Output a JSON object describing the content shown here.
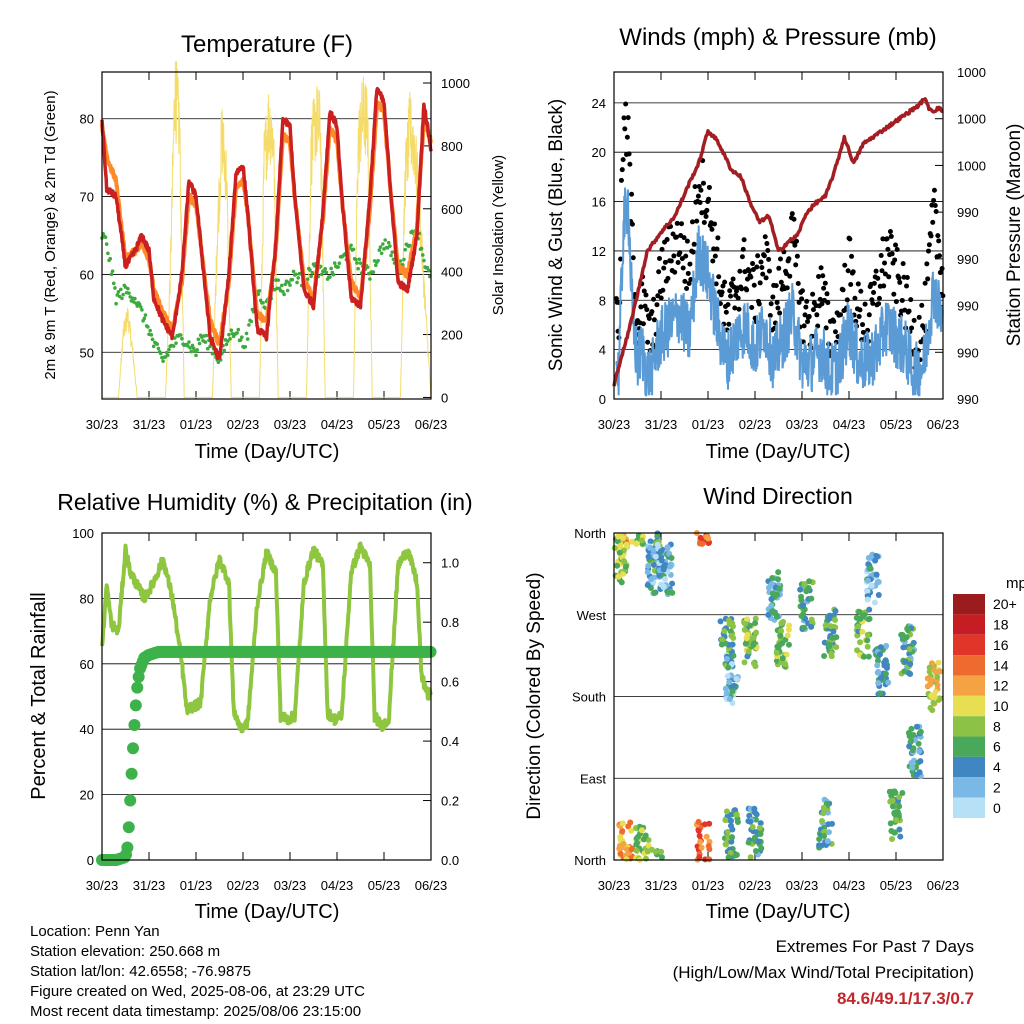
{
  "colors": {
    "temp_red": "#cc1f1f",
    "temp_orange": "#ff8a2a",
    "dewpoint_green": "#3daa3d",
    "solar_yellow": "#f5dc6a",
    "gust_black": "#000000",
    "wind_blue": "#5b9bd5",
    "pressure_maroon": "#a31e22",
    "rh_lightgreen": "#8ec63f",
    "precip_green": "#3eb24a",
    "extremes_red": "#c0282d"
  },
  "x_ticks": [
    "30/23",
    "31/23",
    "01/23",
    "02/23",
    "03/23",
    "04/23",
    "05/23",
    "06/23"
  ],
  "chart_data": [
    {
      "type": "line",
      "title": "Temperature (F)",
      "xlabel": "Time (Day/UTC)",
      "ylabel": "2m & 9m T (Red, Orange) & 2m Td (Green)",
      "y2label": "Solar Insolation (Yellow)",
      "ylim": [
        44,
        86
      ],
      "yticks": [
        50,
        60,
        70,
        80
      ],
      "y2lim": [
        -5,
        1035
      ],
      "y2ticks": [
        0,
        200,
        400,
        600,
        800,
        1000
      ],
      "grid": true,
      "x_units": "days since 30/23 UTC",
      "series": [
        {
          "name": "2m T",
          "color": "red",
          "x": [
            0,
            0.1,
            0.3,
            0.5,
            0.7,
            0.85,
            1.0,
            1.1,
            1.3,
            1.5,
            1.7,
            1.85,
            2.0,
            2.1,
            2.3,
            2.5,
            2.7,
            2.85,
            3.0,
            3.1,
            3.3,
            3.5,
            3.7,
            3.85,
            4.0,
            4.1,
            4.3,
            4.5,
            4.7,
            4.85,
            5.0,
            5.1,
            5.3,
            5.5,
            5.7,
            5.85,
            6.0,
            6.15,
            6.3,
            6.5,
            6.7,
            6.85,
            7.0
          ],
          "values": [
            80,
            71,
            70,
            61,
            63,
            65,
            63,
            57,
            54,
            52,
            60,
            72,
            70,
            64,
            52,
            49,
            60,
            73,
            74,
            68,
            53,
            52,
            64,
            80,
            79,
            70,
            58,
            56,
            68,
            81,
            79,
            70,
            57,
            56,
            70,
            84,
            82,
            70,
            59,
            58,
            65,
            82,
            76
          ]
        },
        {
          "name": "9m T",
          "color": "orange",
          "x": [
            0,
            0.1,
            0.3,
            0.5,
            0.7,
            0.85,
            1.0,
            1.1,
            1.3,
            1.5,
            1.7,
            1.85,
            2.0,
            2.1,
            2.3,
            2.5,
            2.7,
            2.85,
            3.0,
            3.1,
            3.3,
            3.5,
            3.7,
            3.85,
            4.0,
            4.1,
            4.3,
            4.5,
            4.7,
            4.85,
            5.0,
            5.1,
            5.3,
            5.5,
            5.7,
            5.85,
            6.0,
            6.15,
            6.3,
            6.5,
            6.7,
            6.85,
            7.0
          ],
          "values": [
            79,
            75,
            72,
            62,
            63,
            64,
            62,
            58,
            55,
            53,
            59,
            70,
            69,
            64,
            54,
            51,
            59,
            71,
            72,
            68,
            55,
            54,
            63,
            78,
            77,
            70,
            59,
            57,
            67,
            79,
            77,
            70,
            59,
            57,
            68,
            82,
            81,
            70,
            61,
            60,
            66,
            80,
            77
          ]
        },
        {
          "name": "2m Td",
          "color": "green",
          "x": [
            0,
            0.1,
            0.3,
            0.5,
            0.7,
            0.85,
            1.0,
            1.1,
            1.3,
            1.5,
            1.7,
            1.85,
            2.0,
            2.1,
            2.3,
            2.5,
            2.7,
            2.85,
            3.0,
            3.1,
            3.3,
            3.5,
            3.7,
            3.85,
            4.0,
            4.1,
            4.3,
            4.5,
            4.7,
            4.85,
            5.0,
            5.1,
            5.3,
            5.5,
            5.7,
            5.85,
            6.0,
            6.15,
            6.3,
            6.5,
            6.7,
            6.85,
            7.0
          ],
          "values": [
            65,
            64,
            57,
            58,
            57,
            55,
            53,
            51,
            49,
            51,
            52,
            51,
            50,
            52,
            51,
            49,
            52,
            53,
            51,
            52,
            58,
            56,
            59,
            58,
            59,
            60,
            59,
            61,
            60,
            60,
            61,
            62,
            63,
            61,
            60,
            62,
            64,
            63,
            60,
            64,
            66,
            62,
            59
          ]
        },
        {
          "name": "Solar Insolation",
          "color": "yellow",
          "axis": "right",
          "x": [
            0,
            0.35,
            0.45,
            0.55,
            0.65,
            0.75,
            1.0,
            1.35,
            1.45,
            1.55,
            1.65,
            1.75,
            2.0,
            2.35,
            2.45,
            2.55,
            2.65,
            2.75,
            3.0,
            3.35,
            3.45,
            3.55,
            3.65,
            3.75,
            4.0,
            4.35,
            4.45,
            4.55,
            4.65,
            4.75,
            5.0,
            5.35,
            5.45,
            5.55,
            5.65,
            5.75,
            6.0,
            6.35,
            6.45,
            6.55,
            6.65,
            6.75,
            7.0
          ],
          "values": [
            0,
            0,
            200,
            260,
            150,
            0,
            0,
            0,
            380,
            980,
            850,
            0,
            0,
            0,
            500,
            830,
            700,
            0,
            0,
            0,
            750,
            880,
            820,
            0,
            0,
            0,
            780,
            880,
            850,
            0,
            0,
            0,
            800,
            900,
            870,
            0,
            0,
            0,
            700,
            850,
            800,
            600,
            0
          ]
        }
      ]
    },
    {
      "type": "line",
      "title": "Winds (mph) & Pressure (mb)",
      "xlabel": "Time (Day/UTC)",
      "ylabel": "Sonic Wind & Gust (Blue, Black)",
      "y2label": "Station Pressure (Maroon)",
      "ylim": [
        0,
        26.5
      ],
      "yticks": [
        0,
        4,
        8,
        12,
        16,
        20,
        24
      ],
      "y2ticks": [
        "990",
        "990",
        "990",
        "990",
        "990",
        "1000",
        "1000",
        "1000"
      ],
      "grid": true,
      "x_units": "days since 30/23 UTC",
      "series": [
        {
          "name": "Gust",
          "color": "black",
          "x": [
            0,
            0.1,
            0.2,
            0.3,
            0.4,
            0.5,
            0.6,
            0.7,
            0.8,
            0.9,
            1.0,
            1.2,
            1.4,
            1.6,
            1.8,
            2.0,
            2.2,
            2.4,
            2.6,
            2.8,
            3.0,
            3.2,
            3.4,
            3.6,
            3.8,
            4.0,
            4.2,
            4.4,
            4.6,
            4.8,
            5.0,
            5.2,
            5.4,
            5.6,
            5.8,
            6.0,
            6.2,
            6.4,
            6.6,
            6.8,
            7.0
          ],
          "values": [
            7,
            6,
            22,
            21,
            12,
            6,
            8,
            6,
            5,
            7,
            10,
            12,
            13,
            10,
            18,
            16,
            11,
            6,
            9,
            11,
            8,
            12,
            7,
            10,
            13,
            7,
            6,
            9,
            5,
            6,
            11,
            7,
            6,
            9,
            12,
            10,
            8,
            5,
            6,
            15,
            10
          ]
        },
        {
          "name": "Wind",
          "color": "blue",
          "x": [
            0,
            0.1,
            0.2,
            0.3,
            0.4,
            0.5,
            0.6,
            0.7,
            0.8,
            0.9,
            1.0,
            1.2,
            1.4,
            1.6,
            1.8,
            2.0,
            2.2,
            2.4,
            2.6,
            2.8,
            3.0,
            3.2,
            3.4,
            3.6,
            3.8,
            4.0,
            4.2,
            4.4,
            4.6,
            4.8,
            5.0,
            5.2,
            5.4,
            5.6,
            5.8,
            6.0,
            6.2,
            6.4,
            6.6,
            6.8,
            7.0
          ],
          "values": [
            3,
            2,
            14,
            16,
            6,
            3,
            4,
            2,
            2,
            4,
            5,
            6,
            7,
            5,
            12,
            10,
            6,
            3,
            5,
            6,
            4,
            6,
            3,
            5,
            7,
            3,
            3,
            4,
            2,
            3,
            6,
            3,
            3,
            4,
            6,
            5,
            4,
            2,
            3,
            9,
            6
          ]
        },
        {
          "name": "Pressure",
          "color": "maroon",
          "axis": "right",
          "y_fraction_of_axis": true,
          "x": [
            0,
            0.1,
            0.3,
            0.5,
            0.7,
            1.0,
            1.3,
            1.6,
            1.8,
            2.0,
            2.2,
            2.5,
            2.7,
            2.9,
            3.1,
            3.3,
            3.5,
            3.7,
            3.9,
            4.1,
            4.3,
            4.5,
            4.7,
            4.9,
            5.1,
            5.3,
            5.5,
            5.7,
            5.9,
            6.1,
            6.3,
            6.5,
            6.6,
            6.7,
            6.8,
            6.9,
            7.0
          ],
          "values": [
            0.04,
            0.1,
            0.2,
            0.32,
            0.45,
            0.51,
            0.56,
            0.66,
            0.72,
            0.82,
            0.79,
            0.7,
            0.68,
            0.6,
            0.54,
            0.56,
            0.45,
            0.48,
            0.5,
            0.57,
            0.6,
            0.62,
            0.7,
            0.8,
            0.72,
            0.78,
            0.8,
            0.82,
            0.84,
            0.86,
            0.88,
            0.9,
            0.92,
            0.89,
            0.88,
            0.89,
            0.88
          ]
        }
      ]
    },
    {
      "type": "line",
      "title": "Relative Humidity (%) & Precipitation (in)",
      "xlabel": "Time (Day/UTC)",
      "ylabel": "Percent & Total Rainfall",
      "ylim": [
        0,
        100
      ],
      "yticks": [
        0,
        20,
        40,
        60,
        80,
        100
      ],
      "y2lim": [
        0,
        1.1
      ],
      "y2ticks": [
        0.0,
        0.2,
        0.4,
        0.6,
        0.8,
        1.0
      ],
      "grid": true,
      "x_units": "days since 30/23 UTC",
      "series": [
        {
          "name": "RH",
          "color": "lightgreen",
          "x": [
            0,
            0.1,
            0.2,
            0.35,
            0.5,
            0.6,
            0.75,
            0.9,
            1.1,
            1.3,
            1.5,
            1.7,
            1.8,
            1.95,
            2.1,
            2.3,
            2.5,
            2.7,
            2.8,
            2.95,
            3.1,
            3.3,
            3.5,
            3.7,
            3.8,
            3.95,
            4.1,
            4.3,
            4.5,
            4.7,
            4.8,
            4.95,
            5.1,
            5.3,
            5.5,
            5.7,
            5.8,
            5.95,
            6.1,
            6.3,
            6.5,
            6.7,
            6.8,
            6.95,
            7.0
          ],
          "values": [
            65,
            84,
            72,
            70,
            95,
            88,
            84,
            80,
            85,
            92,
            80,
            60,
            46,
            47,
            48,
            80,
            92,
            85,
            46,
            40,
            42,
            78,
            94,
            88,
            44,
            43,
            44,
            85,
            95,
            90,
            45,
            43,
            44,
            88,
            96,
            90,
            44,
            41,
            43,
            90,
            95,
            85,
            56,
            50,
            52
          ]
        },
        {
          "name": "Precip",
          "color": "green",
          "axis": "right",
          "x": [
            0,
            0.3,
            0.5,
            0.55,
            0.6,
            0.65,
            0.7,
            0.75,
            0.8,
            0.9,
            1.0,
            1.2,
            1.5,
            2.0,
            3.0,
            4.0,
            5.0,
            6.0,
            7.0
          ],
          "values": [
            0,
            0,
            0.01,
            0.05,
            0.2,
            0.35,
            0.48,
            0.58,
            0.64,
            0.68,
            0.69,
            0.7,
            0.7,
            0.7,
            0.7,
            0.7,
            0.7,
            0.7,
            0.7
          ]
        }
      ]
    },
    {
      "type": "scatter",
      "title": "Wind Direction",
      "xlabel": "Time (Day/UTC)",
      "ylabel": "Direction (Colored By Speed)",
      "ytick_labels": [
        "North",
        "East",
        "South",
        "West",
        "North"
      ],
      "ylim": [
        0,
        360
      ],
      "legend_title": "mph",
      "legend_labels": [
        "20+",
        "18",
        "16",
        "14",
        "12",
        "10",
        "8",
        "6",
        "4",
        "2",
        "0"
      ],
      "legend_colors": [
        "#9b1c1c",
        "#c41e24",
        "#e2352a",
        "#ef6a2e",
        "#f5a244",
        "#e8de52",
        "#8cc346",
        "#4aa85a",
        "#3f86c2",
        "#7ab8e6",
        "#b6e0f6"
      ],
      "legend_position": "right",
      "x_units": "days since 30/23 UTC",
      "clusters": [
        {
          "x": 0.25,
          "dir": 15,
          "speed": 12
        },
        {
          "x": 0.6,
          "dir": 10,
          "speed": 8
        },
        {
          "x": 0.9,
          "dir": 345,
          "speed": 6
        },
        {
          "x": 0.15,
          "dir": 330,
          "speed": 8
        },
        {
          "x": 0.85,
          "dir": 320,
          "speed": 3
        },
        {
          "x": 1.9,
          "dir": 15,
          "speed": 14
        },
        {
          "x": 2.4,
          "dir": 240,
          "speed": 6
        },
        {
          "x": 2.5,
          "dir": 200,
          "speed": 3
        },
        {
          "x": 2.9,
          "dir": 240,
          "speed": 7
        },
        {
          "x": 3.4,
          "dir": 290,
          "speed": 4
        },
        {
          "x": 3.6,
          "dir": 240,
          "speed": 8
        },
        {
          "x": 4.1,
          "dir": 280,
          "speed": 5
        },
        {
          "x": 4.5,
          "dir": 40,
          "speed": 5
        },
        {
          "x": 4.6,
          "dir": 250,
          "speed": 6
        },
        {
          "x": 5.3,
          "dir": 250,
          "speed": 7
        },
        {
          "x": 5.5,
          "dir": 310,
          "speed": 3
        },
        {
          "x": 5.7,
          "dir": 210,
          "speed": 4
        },
        {
          "x": 6.0,
          "dir": 50,
          "speed": 6
        },
        {
          "x": 6.25,
          "dir": 230,
          "speed": 5
        },
        {
          "x": 6.4,
          "dir": 120,
          "speed": 4
        },
        {
          "x": 6.8,
          "dir": 190,
          "speed": 10
        },
        {
          "x": 2.5,
          "dir": 30,
          "speed": 6
        },
        {
          "x": 1.1,
          "dir": 320,
          "speed": 3
        },
        {
          "x": 3.0,
          "dir": 30,
          "speed": 5
        }
      ]
    }
  ],
  "footer": {
    "location": "Location: Penn Yan",
    "elevation": "Station elevation: 250.668 m",
    "latlon": "Station lat/lon: 42.6558; -76.9875",
    "created": "Figure created on Wed, 2025-08-06, at 23:29 UTC",
    "recent": "Most recent data timestamp: 2025/08/06 23:15:00"
  },
  "extremes": {
    "title": "Extremes For Past 7 Days",
    "subtitle": "(High/Low/Max Wind/Total Precipitation)",
    "values": "84.6/49.1/17.3/0.7"
  }
}
